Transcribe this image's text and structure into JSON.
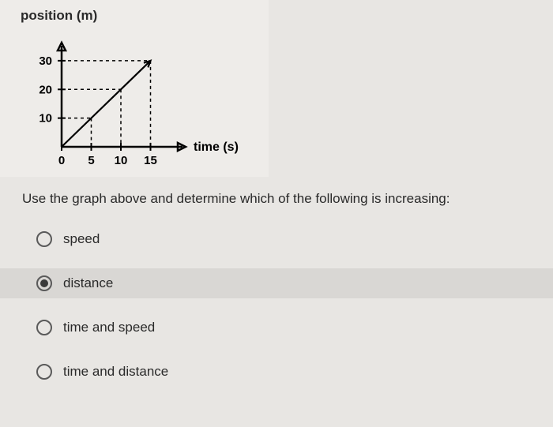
{
  "chart": {
    "type": "line",
    "title": "position (m)",
    "xlabel": "time (s)",
    "y_ticks": [
      10,
      20,
      30
    ],
    "x_ticks": [
      0,
      5,
      10,
      15
    ],
    "xlim": [
      0,
      18
    ],
    "ylim": [
      0,
      33
    ],
    "line_points_x": [
      0,
      15
    ],
    "line_points_y": [
      0,
      30
    ],
    "guide_points": [
      {
        "x": 5,
        "y": 10
      },
      {
        "x": 10,
        "y": 20
      },
      {
        "x": 15,
        "y": 30
      }
    ],
    "axis_color": "#000000",
    "line_color": "#000000",
    "guide_dash": "4 4",
    "background": "#eeece9",
    "tick_font_size": 15,
    "label_font_size": 16,
    "line_width": 2.2,
    "axis_width": 2.5
  },
  "question": "Use the graph above and determine which of the following is increasing:",
  "options": [
    {
      "label": "speed",
      "selected": false
    },
    {
      "label": "distance",
      "selected": true
    },
    {
      "label": "time and speed",
      "selected": false
    },
    {
      "label": "time and distance",
      "selected": false
    }
  ]
}
